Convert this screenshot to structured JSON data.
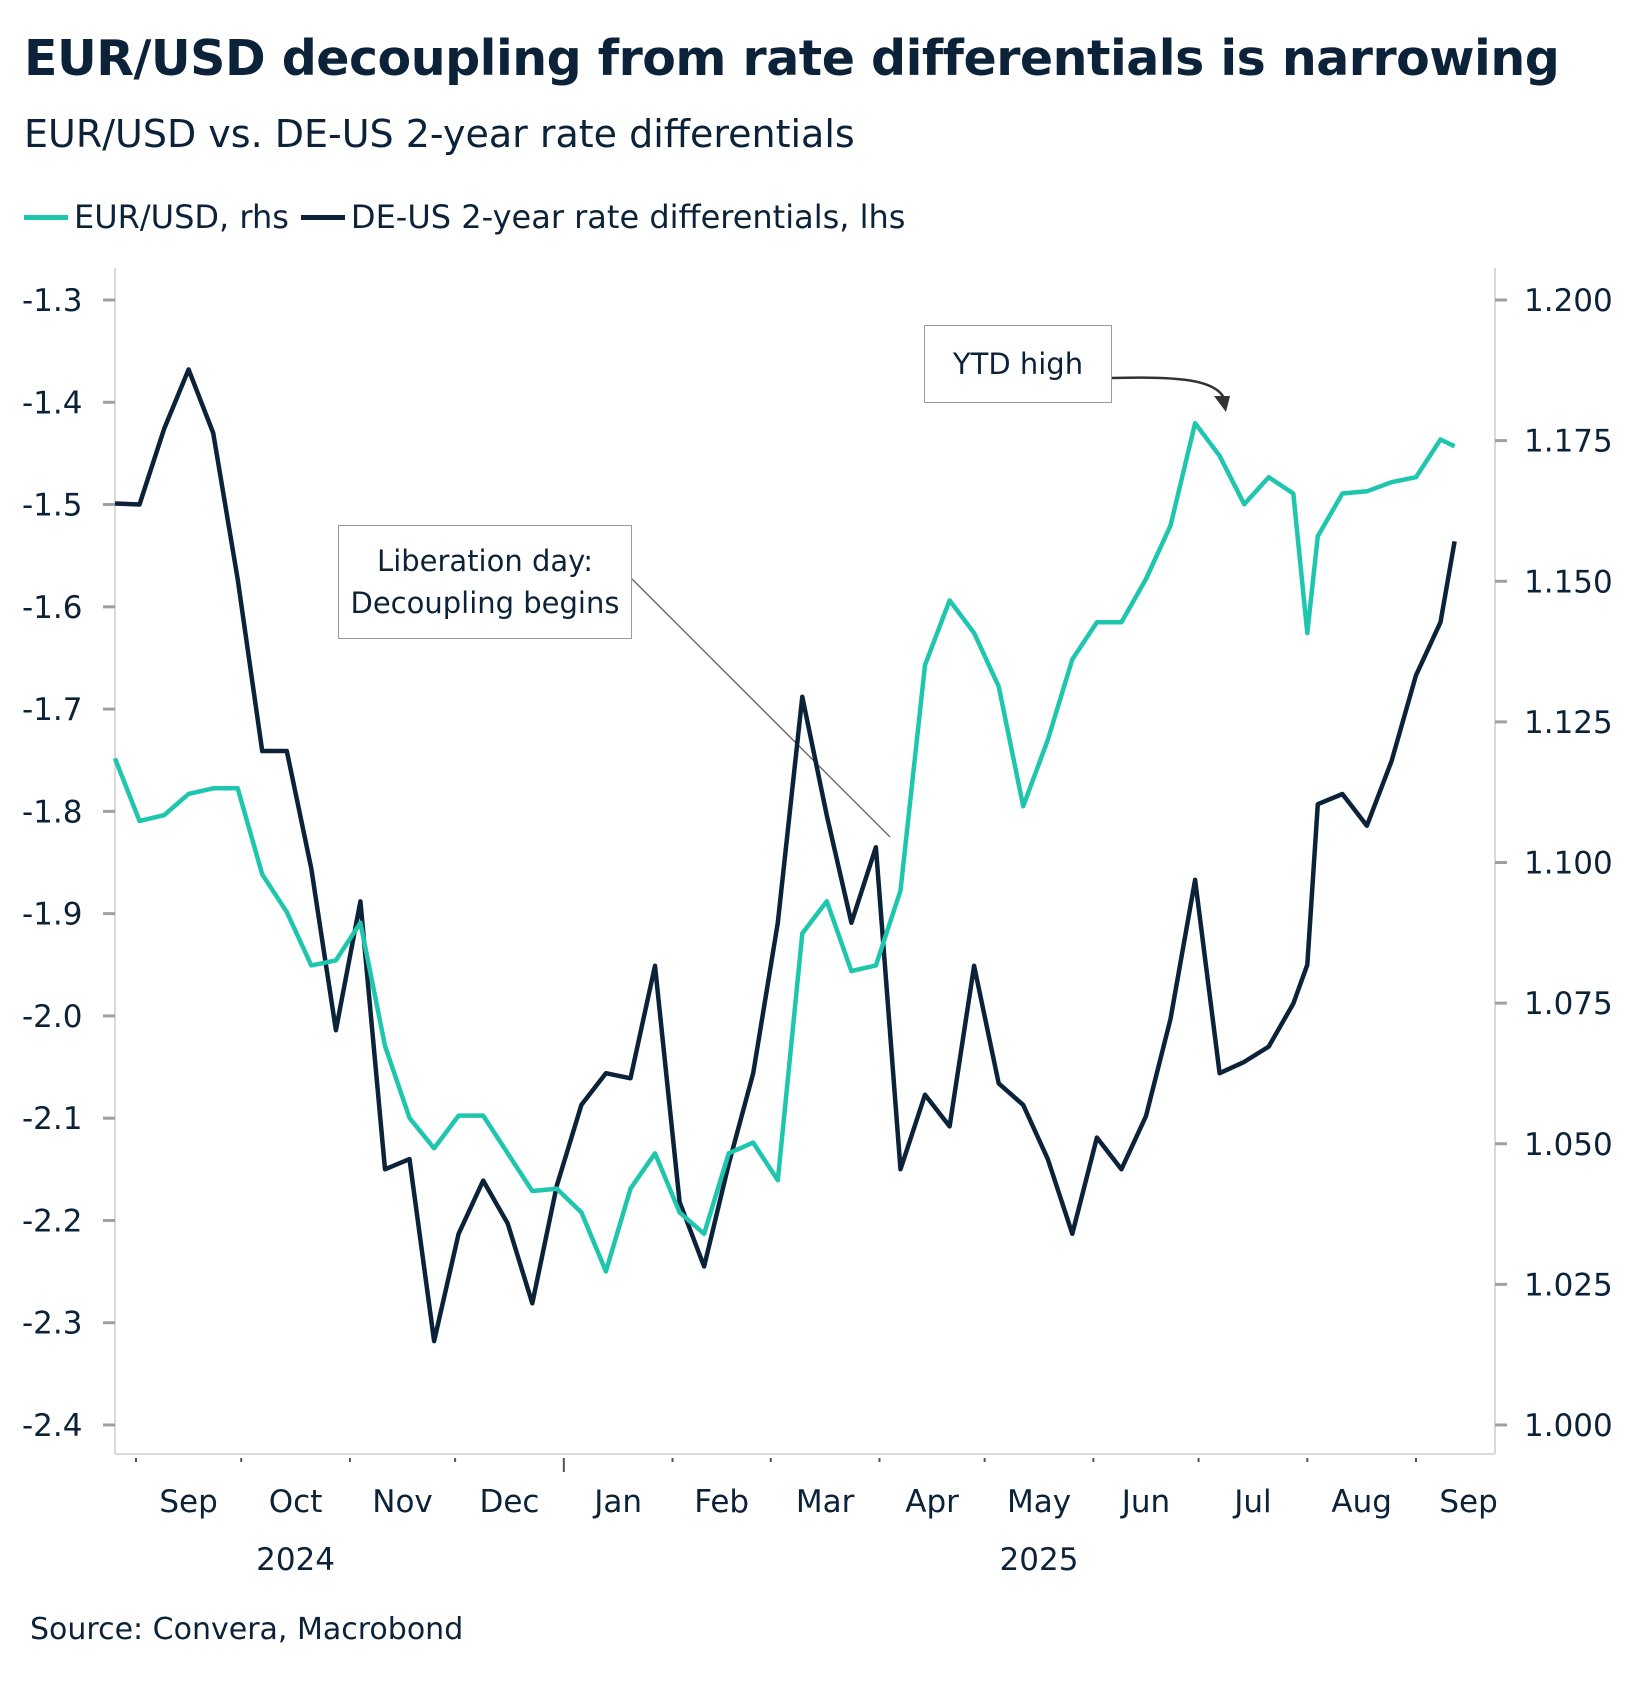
{
  "chart_data": {
    "type": "line",
    "title": "EUR/USD decoupling from rate differentials is narrowing",
    "subtitle": "EUR/USD vs. DE-US 2-year rate differentials",
    "source": "Source: Convera, Macrobond",
    "x": [
      "2024-08-26",
      "2024-09-02",
      "2024-09-09",
      "2024-09-16",
      "2024-09-23",
      "2024-09-30",
      "2024-10-07",
      "2024-10-14",
      "2024-10-21",
      "2024-10-28",
      "2024-11-04",
      "2024-11-11",
      "2024-11-18",
      "2024-11-25",
      "2024-12-02",
      "2024-12-09",
      "2024-12-16",
      "2024-12-23",
      "2024-12-30",
      "2025-01-06",
      "2025-01-13",
      "2025-01-20",
      "2025-01-27",
      "2025-02-03",
      "2025-02-10",
      "2025-02-17",
      "2025-02-24",
      "2025-03-03",
      "2025-03-10",
      "2025-03-17",
      "2025-03-24",
      "2025-03-31",
      "2025-04-07",
      "2025-04-14",
      "2025-04-21",
      "2025-04-28",
      "2025-05-05",
      "2025-05-12",
      "2025-05-19",
      "2025-05-26",
      "2025-06-02",
      "2025-06-09",
      "2025-06-16",
      "2025-06-23",
      "2025-06-30",
      "2025-07-07",
      "2025-07-14",
      "2025-07-21",
      "2025-07-28",
      "2025-08-01",
      "2025-08-04",
      "2025-08-11",
      "2025-08-18",
      "2025-08-25",
      "2025-09-01",
      "2025-09-08",
      "2025-09-12"
    ],
    "series": [
      {
        "name": "EUR/USD, rhs",
        "axis": "right",
        "color": "#1fc6ae",
        "values": [
          1.1185,
          1.1074,
          1.1084,
          1.1122,
          1.1132,
          1.1132,
          1.0979,
          1.0912,
          1.0817,
          1.0826,
          1.0893,
          1.0674,
          1.0546,
          1.0492,
          1.055,
          1.055,
          1.0483,
          1.0416,
          1.042,
          1.0378,
          1.0273,
          1.042,
          1.0483,
          1.0378,
          1.034,
          1.0483,
          1.0502,
          1.0435,
          1.0874,
          1.0931,
          1.0807,
          1.0817,
          1.095,
          1.1351,
          1.1466,
          1.1408,
          1.1313,
          1.11,
          1.1218,
          1.1361,
          1.1427,
          1.1427,
          1.1504,
          1.1599,
          1.1781,
          1.1723,
          1.1637,
          1.1685,
          1.1656,
          1.1408,
          1.158,
          1.1656,
          1.166,
          1.1676,
          1.1685,
          1.1752,
          1.174
        ]
      },
      {
        "name": "DE-US 2-year rate differentials, lhs",
        "axis": "left",
        "color": "#0b2239",
        "values": [
          -1.499,
          -1.5,
          -1.426,
          -1.368,
          -1.43,
          -1.573,
          -1.741,
          -1.741,
          -1.856,
          -2.014,
          -1.888,
          -2.15,
          -2.14,
          -2.318,
          -2.213,
          -2.161,
          -2.203,
          -2.281,
          -2.166,
          -2.087,
          -2.056,
          -2.061,
          -1.951,
          -2.182,
          -2.245,
          -2.145,
          -2.056,
          -1.909,
          -1.688,
          -1.804,
          -1.909,
          -1.835,
          -2.15,
          -2.077,
          -2.108,
          -1.951,
          -2.066,
          -2.087,
          -2.14,
          -2.213,
          -2.119,
          -2.15,
          -2.098,
          -2.003,
          -1.867,
          -2.056,
          -2.045,
          -2.03,
          -1.988,
          -1.95,
          -1.793,
          -1.783,
          -1.814,
          -1.751,
          -1.667,
          -1.615,
          -1.536
        ]
      }
    ],
    "y_left": {
      "ylim": [
        -2.4,
        -1.3
      ],
      "ticks": [
        "-1.3",
        "-1.4",
        "-1.5",
        "-1.6",
        "-1.7",
        "-1.8",
        "-1.9",
        "-2.0",
        "-2.1",
        "-2.2",
        "-2.3",
        "-2.4"
      ]
    },
    "y_right": {
      "ylim": [
        1.0,
        1.2
      ],
      "ticks": [
        "1.200",
        "1.175",
        "1.150",
        "1.125",
        "1.100",
        "1.075",
        "1.050",
        "1.025",
        "1.000"
      ]
    },
    "x_months": [
      "Sep",
      "Oct",
      "Nov",
      "Dec",
      "Jan",
      "Feb",
      "Mar",
      "Apr",
      "May",
      "Jun",
      "Jul",
      "Aug",
      "Sep"
    ],
    "x_years": [
      "2024",
      "2025"
    ],
    "grid": false,
    "legend_position": "top-left",
    "annotations": [
      {
        "text": "YTD high",
        "date": "2025-07-01",
        "value": 1.1809
      },
      {
        "text_lines": [
          "Liberation day:",
          "Decoupling begins"
        ],
        "date": "2025-04-02"
      }
    ]
  }
}
